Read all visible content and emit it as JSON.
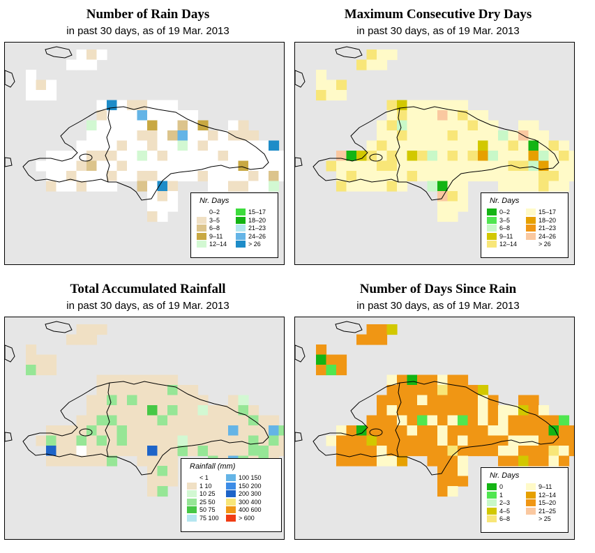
{
  "panels": [
    {
      "id": "rain-days",
      "title": "Number of Rain Days",
      "subtitle": "in past 30 days, as of  19 Mar. 2013",
      "legend": {
        "title": "Nr. Days",
        "items": [
          {
            "label": "0–2",
            "color": "#ffffff"
          },
          {
            "label": "3–5",
            "color": "#f0e0c4"
          },
          {
            "label": "6–8",
            "color": "#dcc48c"
          },
          {
            "label": "9–11",
            "color": "#c8a842"
          },
          {
            "label": "12–14",
            "color": "#d2f8d2"
          },
          {
            "label": "15–17",
            "color": "#3cdc3c"
          },
          {
            "label": "18–20",
            "color": "#14b414"
          },
          {
            "label": "21–23",
            "color": "#b4e6f0"
          },
          {
            "label": "24–26",
            "color": "#64b4e6"
          },
          {
            "label": "> 26",
            "color": "#1e8cc8"
          }
        ]
      },
      "field": {
        "base": "#ffffff",
        "scatter": "#f0e0c4",
        "accents": [
          "#dcc48c",
          "#c8a842",
          "#d2f8d2",
          "#64b4e6",
          "#1e8cc8"
        ]
      }
    },
    {
      "id": "dry-days",
      "title": "Maximum Consecutive Dry Days",
      "subtitle": "in past 30 days, as of  19 Mar. 2013",
      "legend": {
        "title": "Nr. Days",
        "items": [
          {
            "label": "0–2",
            "color": "#14b414"
          },
          {
            "label": "3–5",
            "color": "#50e650"
          },
          {
            "label": "6–8",
            "color": "#c8f8c8"
          },
          {
            "label": "9–11",
            "color": "#d2c800"
          },
          {
            "label": "12–14",
            "color": "#f8e678"
          },
          {
            "label": "15–17",
            "color": "#fffac8"
          },
          {
            "label": "18–20",
            "color": "#e6a000"
          },
          {
            "label": "21–23",
            "color": "#f09614"
          },
          {
            "label": "24–26",
            "color": "#fac8a0"
          },
          {
            "label": "> 26",
            "color": "#ffffff"
          }
        ]
      },
      "field": {
        "base": "#fffac8",
        "scatter": "#f8e678",
        "accents": [
          "#e6a000",
          "#d2c800",
          "#14b414",
          "#fac8a0",
          "#c8f8c8"
        ]
      }
    },
    {
      "id": "total-rainfall",
      "title": "Total Accumulated Rainfall",
      "subtitle": "in past 30 days, as of  19 Mar. 2013",
      "legend": {
        "title": "Rainfall (mm)",
        "items": [
          {
            "label": "< 1",
            "color": "#ffffff"
          },
          {
            "label": "1   10",
            "color": "#f0e0c4"
          },
          {
            "label": "10   25",
            "color": "#d2f8d2"
          },
          {
            "label": "25   50",
            "color": "#96e696"
          },
          {
            "label": "50   75",
            "color": "#46c846"
          },
          {
            "label": "75   100",
            "color": "#b4e6f0"
          },
          {
            "label": "100   150",
            "color": "#64b4e6"
          },
          {
            "label": "150   200",
            "color": "#3c8ce6"
          },
          {
            "label": "200   300",
            "color": "#1e64c8"
          },
          {
            "label": "300   400",
            "color": "#f8e678"
          },
          {
            "label": "400   600",
            "color": "#f09614"
          },
          {
            "label": "> 600",
            "color": "#f03c14"
          }
        ]
      },
      "field": {
        "base": "#f0e0c4",
        "scatter": "#96e696",
        "accents": [
          "#46c846",
          "#ffffff",
          "#d2f8d2",
          "#64b4e6",
          "#1e64c8"
        ]
      }
    },
    {
      "id": "days-since-rain",
      "title": "Number of Days Since Rain",
      "subtitle": "in past 30 days, as of  19 Mar. 2013",
      "legend": {
        "title": "Nr. Days",
        "items": [
          {
            "label": "0",
            "color": "#14b414"
          },
          {
            "label": "1",
            "color": "#50e650"
          },
          {
            "label": "2–3",
            "color": "#c8f8c8"
          },
          {
            "label": "4–5",
            "color": "#d2c800"
          },
          {
            "label": "6–8",
            "color": "#f8e678"
          },
          {
            "label": "9–11",
            "color": "#fffac8"
          },
          {
            "label": "12–14",
            "color": "#e6a000"
          },
          {
            "label": "15–20",
            "color": "#f09614"
          },
          {
            "label": "21–25",
            "color": "#fac8a0"
          },
          {
            "label": "> 25",
            "color": "#ffffff"
          }
        ]
      },
      "field": {
        "base": "#f09614",
        "scatter": "#fffac8",
        "accents": [
          "#14b414",
          "#e6a000",
          "#50e650",
          "#d2c800",
          "#f8e678"
        ]
      }
    }
  ]
}
